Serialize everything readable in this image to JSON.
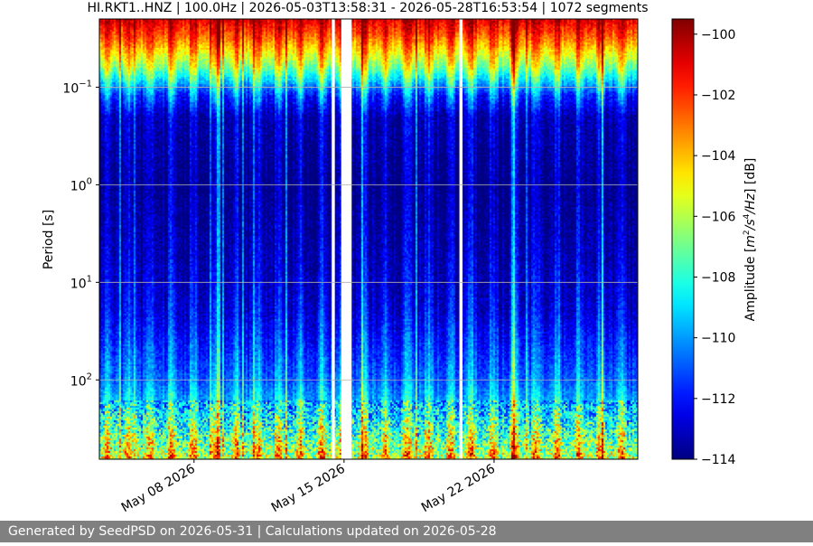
{
  "chart_data": {
    "type": "heatmap",
    "title": "HI.RKT1..HNZ | 100.0Hz | 2026-05-03T13:58:31 - 2026-05-28T16:53:54 | 1072 segments",
    "xlabel": "",
    "ylabel": "Period [s]",
    "x_range": [
      "2026-05-03T13:58:31",
      "2026-05-28T16:53:54"
    ],
    "x_ticks": [
      "May 08 2026",
      "May 15 2026",
      "May 22 2026"
    ],
    "y_scale": "log",
    "y_range": [
      0.02,
      650
    ],
    "y_ticks": [
      {
        "value": 0.1,
        "label": "10",
        "exp": "−1"
      },
      {
        "value": 1,
        "label": "10",
        "exp": "0"
      },
      {
        "value": 10,
        "label": "10",
        "exp": "1"
      },
      {
        "value": 100,
        "label": "10",
        "exp": "2"
      }
    ],
    "grid": true,
    "colormap": "jet",
    "colorbar": {
      "label": "Amplitude [m²/s⁴/Hz] [dB]",
      "min": -114,
      "max": -99.5,
      "ticks": [
        "−100",
        "−102",
        "−104",
        "−106",
        "−108",
        "−110",
        "−112",
        "−114"
      ],
      "tick_values": [
        -100,
        -102,
        -104,
        -106,
        -108,
        -110,
        -112,
        -114
      ]
    },
    "data_gaps": [
      {
        "start": "2026-05-14T10:10:00",
        "end": "2026-05-14T13:40:00"
      },
      {
        "start": "2026-05-14T20:50:00",
        "end": "2026-05-15T08:30:00"
      },
      {
        "start": "2026-05-20T09:10:00",
        "end": "2026-05-20T12:40:00"
      }
    ],
    "amplitude_profile_db": [
      {
        "period": 0.02,
        "day": -100,
        "night": -101
      },
      {
        "period": 0.03,
        "day": -101,
        "night": -103
      },
      {
        "period": 0.06,
        "day": -104,
        "night": -107
      },
      {
        "period": 0.12,
        "day": -109,
        "night": -112
      },
      {
        "period": 0.2,
        "day": -112,
        "night": -113.5
      },
      {
        "period": 1,
        "day": -112.5,
        "night": -114
      },
      {
        "period": 5,
        "day": -112,
        "night": -113.5
      },
      {
        "period": 20,
        "day": -111,
        "night": -113
      },
      {
        "period": 100,
        "day": -109,
        "night": -111
      },
      {
        "period": 250,
        "day": -106,
        "night": -109
      },
      {
        "period": 650,
        "day": -102,
        "night": -106
      }
    ]
  },
  "footer": {
    "text": "Generated by SeedPSD on 2026-05-31 | Calculations updated on 2026-05-28"
  }
}
